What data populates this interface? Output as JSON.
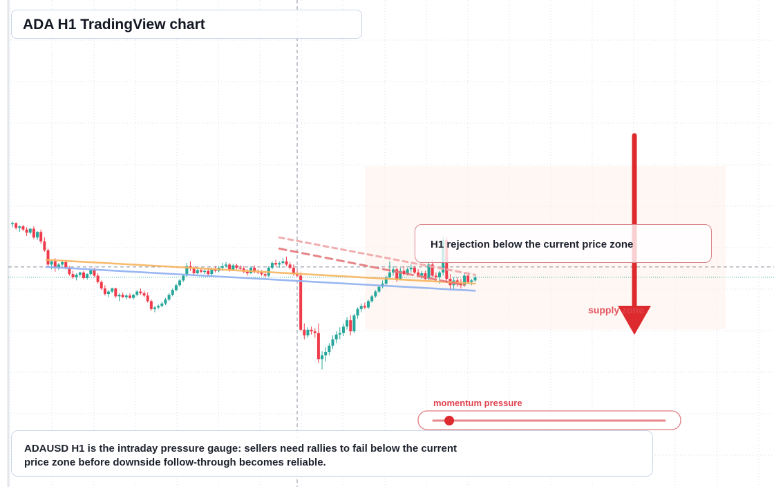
{
  "chart_data": {
    "type": "candlestick",
    "title": "ADA H1 TradingView chart",
    "xlabel": "",
    "ylabel": "",
    "grid": true,
    "legend": "none",
    "price_scale": "relative, axis labels not shown",
    "candles": [
      {
        "i": 0,
        "o": 95,
        "h": 98,
        "l": 91,
        "c": 96
      },
      {
        "i": 1,
        "o": 96,
        "h": 97,
        "l": 88,
        "c": 90
      },
      {
        "i": 2,
        "o": 90,
        "h": 93,
        "l": 85,
        "c": 92
      },
      {
        "i": 3,
        "o": 92,
        "h": 94,
        "l": 86,
        "c": 88
      },
      {
        "i": 4,
        "o": 88,
        "h": 91,
        "l": 80,
        "c": 84
      },
      {
        "i": 5,
        "o": 84,
        "h": 90,
        "l": 82,
        "c": 89
      },
      {
        "i": 6,
        "o": 89,
        "h": 92,
        "l": 76,
        "c": 78
      },
      {
        "i": 7,
        "o": 78,
        "h": 86,
        "l": 75,
        "c": 85
      },
      {
        "i": 8,
        "o": 85,
        "h": 88,
        "l": 70,
        "c": 73
      },
      {
        "i": 9,
        "o": 73,
        "h": 78,
        "l": 60,
        "c": 62
      },
      {
        "i": 10,
        "o": 62,
        "h": 64,
        "l": 40,
        "c": 44
      },
      {
        "i": 11,
        "o": 44,
        "h": 50,
        "l": 38,
        "c": 48
      },
      {
        "i": 12,
        "o": 48,
        "h": 52,
        "l": 35,
        "c": 40
      },
      {
        "i": 13,
        "o": 40,
        "h": 46,
        "l": 37,
        "c": 44
      },
      {
        "i": 14,
        "o": 44,
        "h": 50,
        "l": 41,
        "c": 47
      },
      {
        "i": 15,
        "o": 47,
        "h": 50,
        "l": 38,
        "c": 40
      },
      {
        "i": 16,
        "o": 40,
        "h": 42,
        "l": 30,
        "c": 32
      },
      {
        "i": 17,
        "o": 32,
        "h": 36,
        "l": 26,
        "c": 28
      },
      {
        "i": 18,
        "o": 28,
        "h": 33,
        "l": 24,
        "c": 31
      },
      {
        "i": 19,
        "o": 31,
        "h": 35,
        "l": 29,
        "c": 34
      },
      {
        "i": 20,
        "o": 34,
        "h": 36,
        "l": 25,
        "c": 27
      },
      {
        "i": 21,
        "o": 27,
        "h": 33,
        "l": 25,
        "c": 32
      },
      {
        "i": 22,
        "o": 32,
        "h": 38,
        "l": 30,
        "c": 37
      },
      {
        "i": 23,
        "o": 37,
        "h": 40,
        "l": 28,
        "c": 30
      },
      {
        "i": 24,
        "o": 30,
        "h": 33,
        "l": 20,
        "c": 22
      },
      {
        "i": 25,
        "o": 22,
        "h": 24,
        "l": 12,
        "c": 14
      },
      {
        "i": 26,
        "o": 14,
        "h": 18,
        "l": 5,
        "c": 7
      },
      {
        "i": 27,
        "o": 7,
        "h": 12,
        "l": 3,
        "c": 10
      },
      {
        "i": 28,
        "o": 10,
        "h": 15,
        "l": 8,
        "c": 14
      },
      {
        "i": 29,
        "o": 14,
        "h": 15,
        "l": 2,
        "c": 4
      },
      {
        "i": 30,
        "o": 4,
        "h": 8,
        "l": -2,
        "c": 6
      },
      {
        "i": 31,
        "o": 6,
        "h": 9,
        "l": 2,
        "c": 3
      },
      {
        "i": 32,
        "o": 3,
        "h": 7,
        "l": 0,
        "c": 5
      },
      {
        "i": 33,
        "o": 5,
        "h": 8,
        "l": 1,
        "c": 2
      },
      {
        "i": 34,
        "o": 2,
        "h": 7,
        "l": 0,
        "c": 6
      },
      {
        "i": 35,
        "o": 6,
        "h": 12,
        "l": 4,
        "c": 10
      },
      {
        "i": 36,
        "o": 10,
        "h": 14,
        "l": 6,
        "c": 8
      },
      {
        "i": 37,
        "o": 8,
        "h": 11,
        "l": 3,
        "c": 5
      },
      {
        "i": 38,
        "o": 5,
        "h": 9,
        "l": -4,
        "c": -2
      },
      {
        "i": 39,
        "o": -2,
        "h": 0,
        "l": -14,
        "c": -12
      },
      {
        "i": 40,
        "o": -12,
        "h": -8,
        "l": -16,
        "c": -10
      },
      {
        "i": 41,
        "o": -10,
        "h": -6,
        "l": -12,
        "c": -8
      },
      {
        "i": 42,
        "o": -8,
        "h": -3,
        "l": -10,
        "c": -5
      },
      {
        "i": 43,
        "o": -5,
        "h": 2,
        "l": -7,
        "c": 0
      },
      {
        "i": 44,
        "o": 0,
        "h": 8,
        "l": -2,
        "c": 6
      },
      {
        "i": 45,
        "o": 6,
        "h": 14,
        "l": 4,
        "c": 12
      },
      {
        "i": 46,
        "o": 12,
        "h": 20,
        "l": 10,
        "c": 18
      },
      {
        "i": 47,
        "o": 18,
        "h": 26,
        "l": 16,
        "c": 24
      },
      {
        "i": 48,
        "o": 24,
        "h": 32,
        "l": 22,
        "c": 30
      },
      {
        "i": 49,
        "o": 30,
        "h": 46,
        "l": 28,
        "c": 42
      },
      {
        "i": 50,
        "o": 42,
        "h": 48,
        "l": 36,
        "c": 39
      },
      {
        "i": 51,
        "o": 39,
        "h": 42,
        "l": 30,
        "c": 33
      },
      {
        "i": 52,
        "o": 33,
        "h": 40,
        "l": 32,
        "c": 37
      },
      {
        "i": 53,
        "o": 37,
        "h": 40,
        "l": 33,
        "c": 35
      },
      {
        "i": 54,
        "o": 35,
        "h": 38,
        "l": 32,
        "c": 36
      },
      {
        "i": 55,
        "o": 36,
        "h": 40,
        "l": 30,
        "c": 32
      },
      {
        "i": 56,
        "o": 32,
        "h": 40,
        "l": 30,
        "c": 38
      },
      {
        "i": 57,
        "o": 38,
        "h": 42,
        "l": 34,
        "c": 36
      },
      {
        "i": 58,
        "o": 36,
        "h": 42,
        "l": 34,
        "c": 40
      },
      {
        "i": 59,
        "o": 40,
        "h": 46,
        "l": 36,
        "c": 42
      },
      {
        "i": 60,
        "o": 42,
        "h": 47,
        "l": 40,
        "c": 44
      },
      {
        "i": 61,
        "o": 44,
        "h": 46,
        "l": 35,
        "c": 37
      },
      {
        "i": 62,
        "o": 37,
        "h": 45,
        "l": 36,
        "c": 43
      },
      {
        "i": 63,
        "o": 43,
        "h": 45,
        "l": 38,
        "c": 40
      },
      {
        "i": 64,
        "o": 40,
        "h": 43,
        "l": 36,
        "c": 39
      },
      {
        "i": 65,
        "o": 39,
        "h": 42,
        "l": 33,
        "c": 35
      },
      {
        "i": 66,
        "o": 35,
        "h": 38,
        "l": 30,
        "c": 33
      },
      {
        "i": 67,
        "o": 33,
        "h": 42,
        "l": 32,
        "c": 40
      },
      {
        "i": 68,
        "o": 40,
        "h": 43,
        "l": 33,
        "c": 35
      },
      {
        "i": 69,
        "o": 35,
        "h": 38,
        "l": 32,
        "c": 34
      },
      {
        "i": 70,
        "o": 34,
        "h": 37,
        "l": 30,
        "c": 32
      },
      {
        "i": 71,
        "o": 32,
        "h": 36,
        "l": 28,
        "c": 30
      },
      {
        "i": 72,
        "o": 30,
        "h": 42,
        "l": 28,
        "c": 40
      },
      {
        "i": 73,
        "o": 40,
        "h": 48,
        "l": 38,
        "c": 46
      },
      {
        "i": 74,
        "o": 46,
        "h": 50,
        "l": 42,
        "c": 44
      },
      {
        "i": 75,
        "o": 44,
        "h": 48,
        "l": 40,
        "c": 46
      },
      {
        "i": 76,
        "o": 46,
        "h": 52,
        "l": 44,
        "c": 48
      },
      {
        "i": 77,
        "o": 48,
        "h": 54,
        "l": 42,
        "c": 44
      },
      {
        "i": 78,
        "o": 44,
        "h": 47,
        "l": 38,
        "c": 40
      },
      {
        "i": 79,
        "o": 40,
        "h": 44,
        "l": 30,
        "c": 32
      },
      {
        "i": 80,
        "o": 32,
        "h": 36,
        "l": 28,
        "c": 30
      },
      {
        "i": 81,
        "o": 30,
        "h": 34,
        "l": -40,
        "c": -38
      },
      {
        "i": 82,
        "o": -38,
        "h": -30,
        "l": -50,
        "c": -45
      },
      {
        "i": 83,
        "o": -45,
        "h": -35,
        "l": -48,
        "c": -38
      },
      {
        "i": 84,
        "o": -38,
        "h": -34,
        "l": -44,
        "c": -40
      },
      {
        "i": 85,
        "o": -40,
        "h": -36,
        "l": -48,
        "c": -42
      },
      {
        "i": 86,
        "o": -42,
        "h": -30,
        "l": -80,
        "c": -75
      },
      {
        "i": 87,
        "o": -75,
        "h": -65,
        "l": -88,
        "c": -70
      },
      {
        "i": 88,
        "o": -70,
        "h": -60,
        "l": -78,
        "c": -66
      },
      {
        "i": 89,
        "o": -66,
        "h": -55,
        "l": -70,
        "c": -58
      },
      {
        "i": 90,
        "o": -58,
        "h": -45,
        "l": -62,
        "c": -50
      },
      {
        "i": 91,
        "o": -50,
        "h": -40,
        "l": -55,
        "c": -44
      },
      {
        "i": 92,
        "o": -44,
        "h": -35,
        "l": -50,
        "c": -42
      },
      {
        "i": 93,
        "o": -42,
        "h": -30,
        "l": -46,
        "c": -34
      },
      {
        "i": 94,
        "o": -34,
        "h": -22,
        "l": -38,
        "c": -26
      },
      {
        "i": 95,
        "o": -26,
        "h": -20,
        "l": -45,
        "c": -40
      },
      {
        "i": 96,
        "o": -40,
        "h": -18,
        "l": -42,
        "c": -20
      },
      {
        "i": 97,
        "o": -20,
        "h": -10,
        "l": -24,
        "c": -12
      },
      {
        "i": 98,
        "o": -12,
        "h": -5,
        "l": -16,
        "c": -8
      },
      {
        "i": 99,
        "o": -8,
        "h": -4,
        "l": -12,
        "c": -10
      },
      {
        "i": 100,
        "o": -10,
        "h": 0,
        "l": -12,
        "c": -2
      },
      {
        "i": 101,
        "o": -2,
        "h": 6,
        "l": -4,
        "c": 4
      },
      {
        "i": 102,
        "o": 4,
        "h": 12,
        "l": 2,
        "c": 10
      },
      {
        "i": 103,
        "o": 10,
        "h": 18,
        "l": 8,
        "c": 16
      },
      {
        "i": 104,
        "o": 16,
        "h": 24,
        "l": 14,
        "c": 20
      },
      {
        "i": 105,
        "o": 20,
        "h": 30,
        "l": 18,
        "c": 28
      },
      {
        "i": 106,
        "o": 28,
        "h": 48,
        "l": 26,
        "c": 34
      },
      {
        "i": 107,
        "o": 34,
        "h": 42,
        "l": 30,
        "c": 38
      },
      {
        "i": 108,
        "o": 38,
        "h": 40,
        "l": 22,
        "c": 25
      },
      {
        "i": 109,
        "o": 25,
        "h": 40,
        "l": 24,
        "c": 36
      },
      {
        "i": 110,
        "o": 36,
        "h": 42,
        "l": 30,
        "c": 32
      },
      {
        "i": 111,
        "o": 32,
        "h": 40,
        "l": 30,
        "c": 38
      },
      {
        "i": 112,
        "o": 38,
        "h": 44,
        "l": 34,
        "c": 40
      },
      {
        "i": 113,
        "o": 40,
        "h": 42,
        "l": 32,
        "c": 34
      },
      {
        "i": 114,
        "o": 34,
        "h": 38,
        "l": 28,
        "c": 30
      },
      {
        "i": 115,
        "o": 30,
        "h": 36,
        "l": 26,
        "c": 33
      },
      {
        "i": 116,
        "o": 33,
        "h": 36,
        "l": 24,
        "c": 26
      },
      {
        "i": 117,
        "o": 26,
        "h": 48,
        "l": 24,
        "c": 44
      },
      {
        "i": 118,
        "o": 44,
        "h": 50,
        "l": 28,
        "c": 30
      },
      {
        "i": 119,
        "o": 30,
        "h": 34,
        "l": 24,
        "c": 28
      },
      {
        "i": 120,
        "o": 28,
        "h": 36,
        "l": 20,
        "c": 34
      },
      {
        "i": 121,
        "o": 34,
        "h": 80,
        "l": 30,
        "c": 75
      },
      {
        "i": 122,
        "o": 75,
        "h": 78,
        "l": 22,
        "c": 26
      },
      {
        "i": 123,
        "o": 26,
        "h": 32,
        "l": 12,
        "c": 18
      },
      {
        "i": 124,
        "o": 18,
        "h": 28,
        "l": 12,
        "c": 24
      },
      {
        "i": 125,
        "o": 24,
        "h": 28,
        "l": 16,
        "c": 20
      },
      {
        "i": 126,
        "o": 20,
        "h": 26,
        "l": 14,
        "c": 18
      },
      {
        "i": 127,
        "o": 18,
        "h": 34,
        "l": 16,
        "c": 30
      },
      {
        "i": 128,
        "o": 30,
        "h": 32,
        "l": 20,
        "c": 22
      },
      {
        "i": 129,
        "o": 22,
        "h": 26,
        "l": 18,
        "c": 24
      },
      {
        "i": 130,
        "o": 24,
        "h": 30,
        "l": 22,
        "c": 28
      }
    ],
    "trendlines": [
      {
        "name": "",
        "color": "#f7b560",
        "style": "solid",
        "from": [
          9.5,
          50
        ],
        "to": [
          130,
          20
        ]
      },
      {
        "name": "",
        "color": "#8fb0f0",
        "style": "solid",
        "from": [
          9.5,
          41
        ],
        "to": [
          130,
          11
        ]
      },
      {
        "name": "",
        "color": "#e5777b",
        "style": "dashed",
        "from": [
          75,
          64
        ],
        "to": [
          127,
          18
        ]
      },
      {
        "name": "",
        "color": "#f0a6a8",
        "style": "dashed",
        "from": [
          75,
          78
        ],
        "to": [
          130,
          31
        ]
      }
    ],
    "reference_lines": {
      "crosshair_y": 41,
      "current_price_y": 28,
      "crosshair_x": 80
    },
    "annotations": [
      {
        "text": "H1 rejection below the current price zone",
        "type": "callout"
      },
      {
        "text": "supply zone",
        "type": "label"
      },
      {
        "text": "momentum pressure",
        "type": "gauge-label",
        "level": 0.06
      }
    ]
  },
  "title_text": "ADA H1 TradingView chart",
  "callout_text": "H1 rejection below the current price zone",
  "supply_label": "supply zone",
  "momentum_label": "momentum pressure",
  "note_text": "ADAUSD H1 is the intraday pressure gauge: sellers need rallies to fail below the current price zone before downside follow-through becomes reliable.",
  "colors": {
    "bull": "#26a69a",
    "bear": "#ef3b4b",
    "arrow": "#dd2a2e",
    "grid": "#dadde4"
  }
}
